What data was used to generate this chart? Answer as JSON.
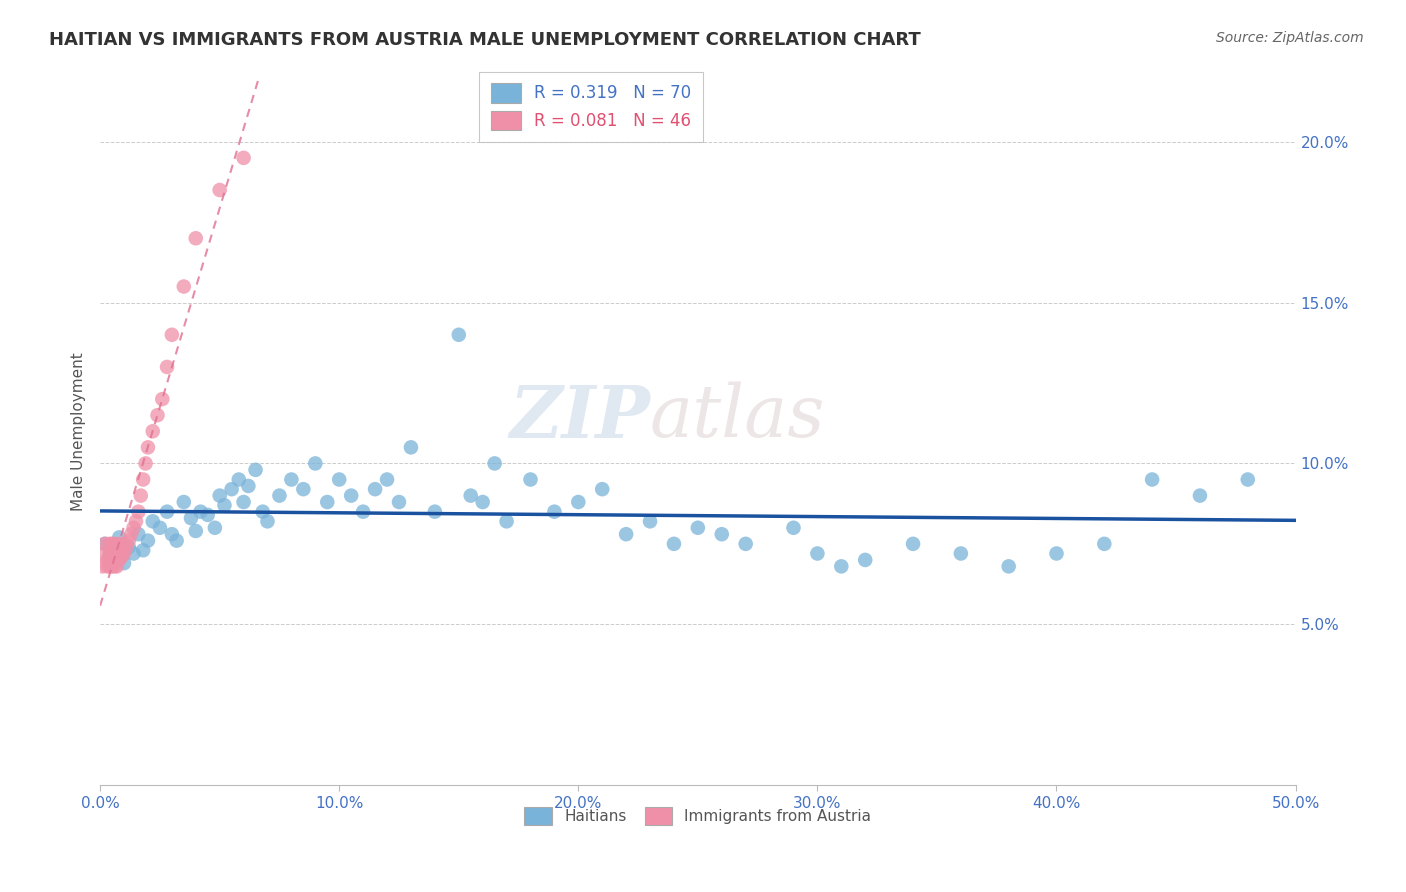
{
  "title": "HAITIAN VS IMMIGRANTS FROM AUSTRIA MALE UNEMPLOYMENT CORRELATION CHART",
  "source": "Source: ZipAtlas.com",
  "ylabel": "Male Unemployment",
  "xlim": [
    0,
    0.5
  ],
  "ylim": [
    0,
    0.22
  ],
  "xticks": [
    0.0,
    0.1,
    0.2,
    0.3,
    0.4,
    0.5
  ],
  "yticks": [
    0.05,
    0.1,
    0.15,
    0.2
  ],
  "ytick_labels": [
    "5.0%",
    "10.0%",
    "15.0%",
    "20.0%"
  ],
  "xtick_labels": [
    "0.0%",
    "10.0%",
    "20.0%",
    "30.0%",
    "40.0%",
    "50.0%"
  ],
  "R_haitian": 0.319,
  "N_haitian": 70,
  "R_austria": 0.081,
  "N_austria": 46,
  "haitian_color": "#7ab3d9",
  "austria_color": "#f090a8",
  "haitian_line_color": "#1a52a0",
  "austria_line_color": "#e07090",
  "haitian_x": [
    0.002,
    0.004,
    0.006,
    0.008,
    0.01,
    0.012,
    0.014,
    0.016,
    0.018,
    0.02,
    0.022,
    0.025,
    0.028,
    0.03,
    0.032,
    0.035,
    0.038,
    0.04,
    0.042,
    0.045,
    0.048,
    0.05,
    0.052,
    0.055,
    0.058,
    0.06,
    0.062,
    0.065,
    0.068,
    0.07,
    0.075,
    0.08,
    0.085,
    0.09,
    0.095,
    0.1,
    0.105,
    0.11,
    0.115,
    0.12,
    0.125,
    0.13,
    0.14,
    0.15,
    0.155,
    0.16,
    0.165,
    0.17,
    0.18,
    0.19,
    0.2,
    0.21,
    0.22,
    0.23,
    0.24,
    0.25,
    0.26,
    0.27,
    0.29,
    0.3,
    0.31,
    0.32,
    0.34,
    0.36,
    0.38,
    0.4,
    0.42,
    0.44,
    0.46,
    0.48
  ],
  "haitian_y": [
    0.075,
    0.071,
    0.073,
    0.077,
    0.069,
    0.074,
    0.072,
    0.078,
    0.073,
    0.076,
    0.082,
    0.08,
    0.085,
    0.078,
    0.076,
    0.088,
    0.083,
    0.079,
    0.085,
    0.084,
    0.08,
    0.09,
    0.087,
    0.092,
    0.095,
    0.088,
    0.093,
    0.098,
    0.085,
    0.082,
    0.09,
    0.095,
    0.092,
    0.1,
    0.088,
    0.095,
    0.09,
    0.085,
    0.092,
    0.095,
    0.088,
    0.105,
    0.085,
    0.14,
    0.09,
    0.088,
    0.1,
    0.082,
    0.095,
    0.085,
    0.088,
    0.092,
    0.078,
    0.082,
    0.075,
    0.08,
    0.078,
    0.075,
    0.08,
    0.072,
    0.068,
    0.07,
    0.075,
    0.072,
    0.068,
    0.072,
    0.075,
    0.095,
    0.09,
    0.095
  ],
  "austria_x": [
    0.001,
    0.002,
    0.002,
    0.003,
    0.003,
    0.004,
    0.004,
    0.004,
    0.005,
    0.005,
    0.005,
    0.005,
    0.006,
    0.006,
    0.006,
    0.006,
    0.007,
    0.007,
    0.007,
    0.007,
    0.008,
    0.008,
    0.008,
    0.009,
    0.009,
    0.01,
    0.01,
    0.011,
    0.012,
    0.013,
    0.014,
    0.015,
    0.016,
    0.017,
    0.018,
    0.019,
    0.02,
    0.022,
    0.024,
    0.026,
    0.028,
    0.03,
    0.035,
    0.04,
    0.05,
    0.06
  ],
  "austria_y": [
    0.068,
    0.072,
    0.075,
    0.068,
    0.07,
    0.072,
    0.075,
    0.068,
    0.068,
    0.07,
    0.072,
    0.075,
    0.068,
    0.07,
    0.072,
    0.075,
    0.068,
    0.07,
    0.072,
    0.074,
    0.07,
    0.072,
    0.075,
    0.071,
    0.073,
    0.072,
    0.075,
    0.074,
    0.076,
    0.078,
    0.08,
    0.082,
    0.085,
    0.09,
    0.095,
    0.1,
    0.105,
    0.11,
    0.115,
    0.12,
    0.13,
    0.14,
    0.155,
    0.17,
    0.185,
    0.195
  ],
  "watermark_zip": "ZIP",
  "watermark_atlas": "atlas",
  "background_color": "#ffffff",
  "grid_color": "#cccccc",
  "axis_color": "#4472c4",
  "title_color": "#333333",
  "legend_haitian_label": "R = 0.319   N = 70",
  "legend_austria_label": "R = 0.081   N = 46",
  "bottom_legend_haitian": "Haitians",
  "bottom_legend_austria": "Immigrants from Austria"
}
